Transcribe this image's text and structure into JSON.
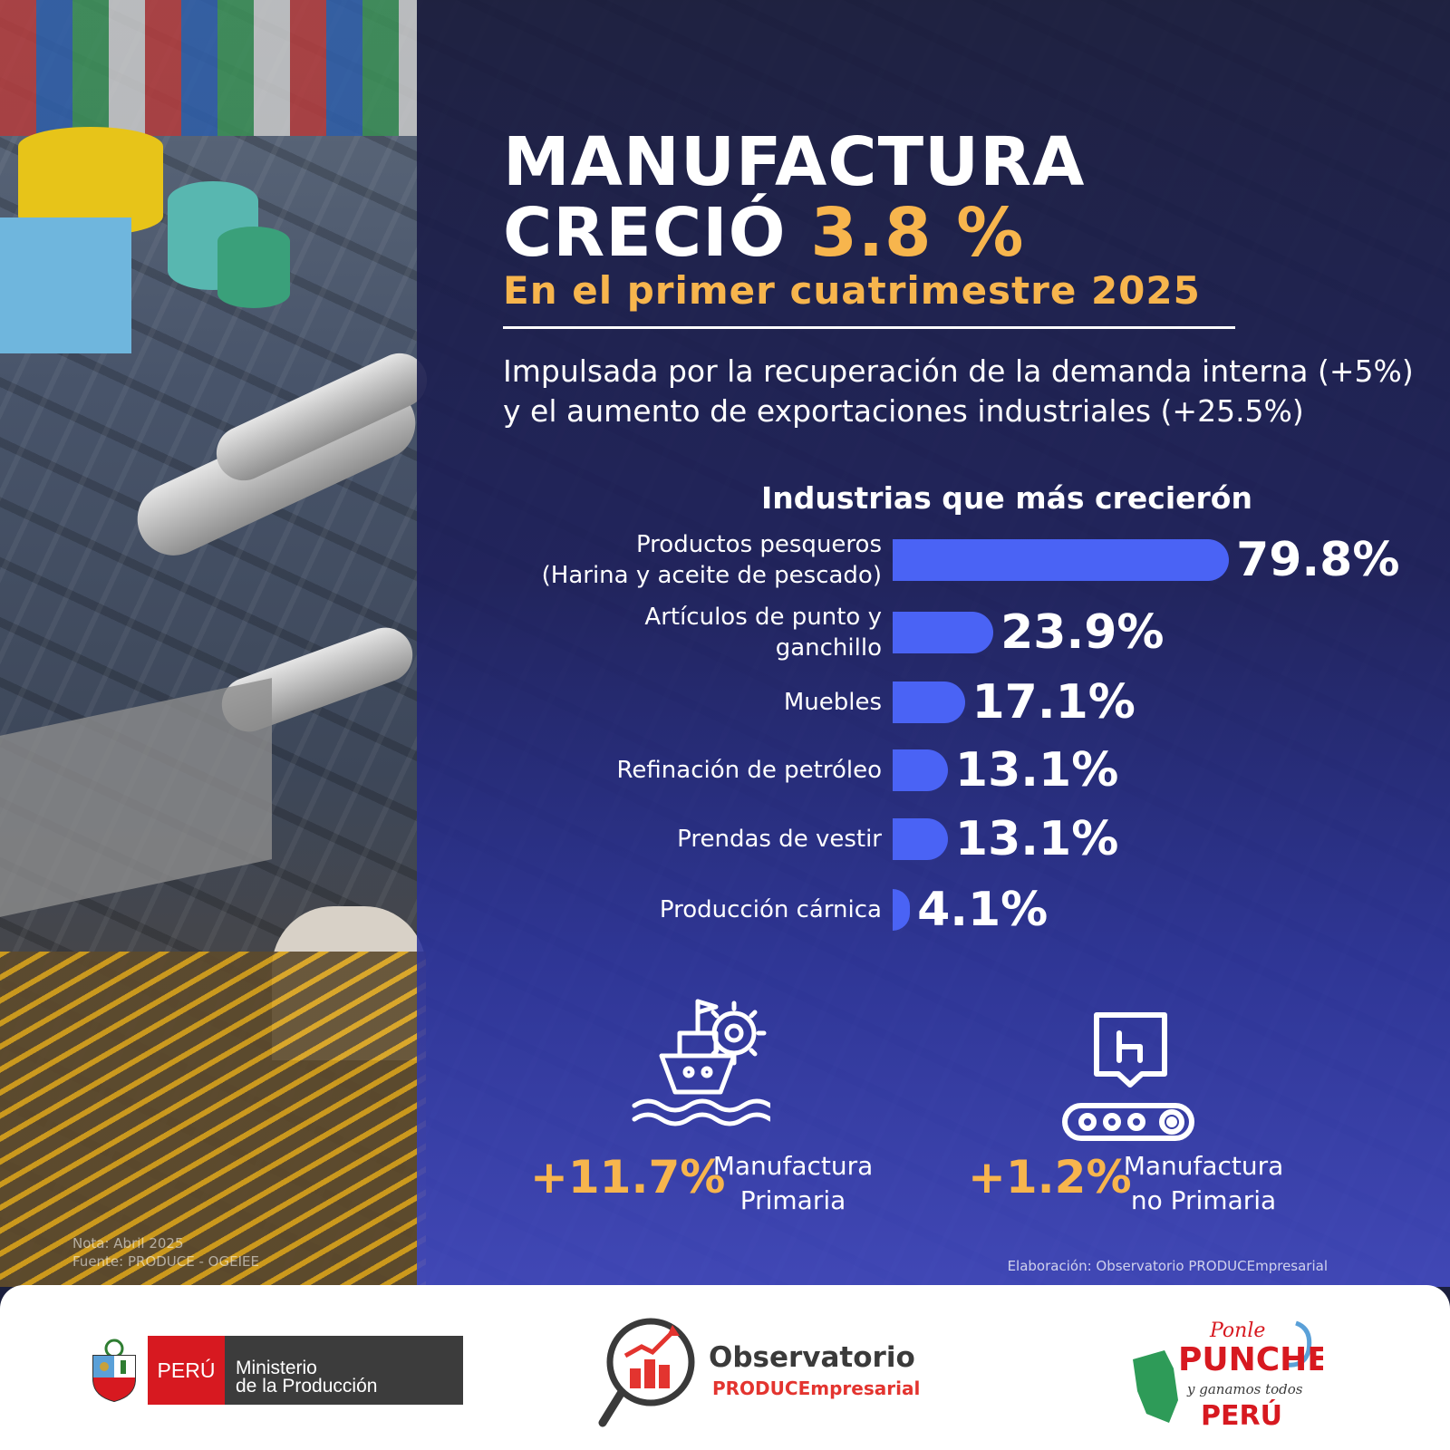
{
  "header": {
    "title_line1": "MANUFACTURA",
    "title_line2_prefix": "CRECIÓ",
    "title_line2_accent": "3.8 %",
    "subtitle": "En el primer cuatrimestre 2025",
    "lead_line1": "Impulsada por la recuperación de la demanda interna (+5%)",
    "lead_line2": "y el aumento de exportaciones industriales (+25.5%)"
  },
  "colors": {
    "accent": "#f7b54d",
    "bar": "#4a63f5",
    "overlay": "#1e205c",
    "peru_red": "#d71920"
  },
  "chart_data": {
    "type": "bar",
    "orientation": "horizontal",
    "title": "Industrias que más crecierón",
    "categories": [
      [
        "Productos pesqueros",
        "(Harina y aceite de pescado)"
      ],
      [
        "Artículos de punto y",
        "ganchillo"
      ],
      [
        "Muebles"
      ],
      [
        "Refinación de petróleo"
      ],
      [
        "Prendas de vestir"
      ],
      [
        "Producción cárnica"
      ]
    ],
    "values": [
      79.8,
      23.9,
      17.1,
      13.1,
      13.1,
      4.1
    ],
    "value_labels": [
      "79.8%",
      "23.9%",
      "17.1%",
      "13.1%",
      "13.1%",
      "4.1%"
    ],
    "xlim": [
      0,
      80
    ],
    "grid": false,
    "legend": "none"
  },
  "kpis": [
    {
      "value": "+11.7%",
      "label_line1": "Manufactura",
      "label_line2": "Primaria",
      "icon": "ship-gear-icon"
    },
    {
      "value": "+1.2%",
      "label_line1": "Manufactura",
      "label_line2": "no Primaria",
      "icon": "conveyor-chair-icon"
    }
  ],
  "notes": {
    "line1": "Nota: Abril 2025",
    "line2": "Fuente: PRODUCE - OGEIEE",
    "credit": "Elaboración: Observatorio PRODUCEmpresarial"
  },
  "footer": {
    "peru": "PERÚ",
    "ministry_line1": "Ministerio",
    "ministry_line2": "de la Producción",
    "observatorio": "Observatorio",
    "observatorio_sub": "PRODUCEmpresarial",
    "ponle_1": "Ponle",
    "ponle_2": "PUNCHE",
    "ponle_3": "y ganamos todos",
    "ponle_4": "PERÚ"
  }
}
